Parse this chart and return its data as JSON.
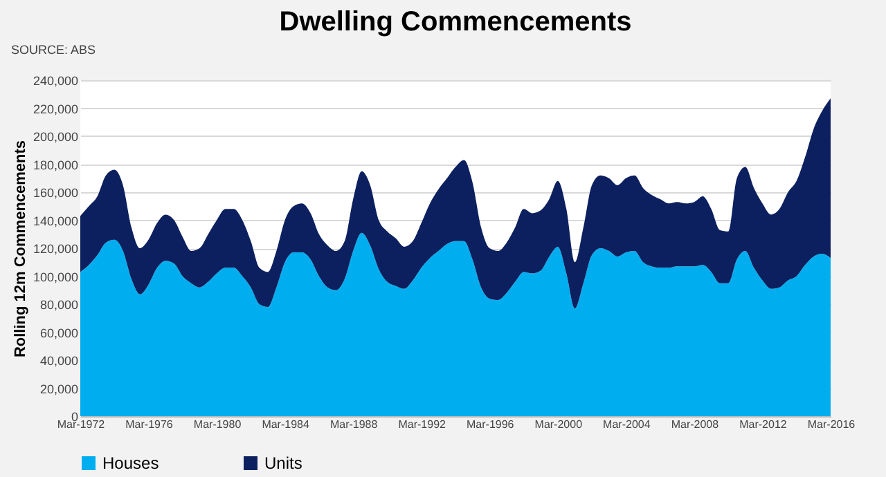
{
  "chart_data": {
    "type": "area",
    "title": "Dwelling Commencements",
    "ylabel": "Rolling 12m Commencements",
    "annotations": [
      "SOURCE: ABS"
    ],
    "stacked": true,
    "legend": "bottom",
    "grid": "y",
    "x": [
      "1972-03",
      "1972-09",
      "1973-03",
      "1973-09",
      "1974-03",
      "1974-09",
      "1975-03",
      "1975-09",
      "1976-03",
      "1976-09",
      "1977-03",
      "1977-09",
      "1978-03",
      "1978-09",
      "1979-03",
      "1979-09",
      "1980-03",
      "1980-09",
      "1981-03",
      "1981-09",
      "1982-03",
      "1982-09",
      "1983-03",
      "1983-09",
      "1984-03",
      "1984-09",
      "1985-03",
      "1985-09",
      "1986-03",
      "1986-09",
      "1987-03",
      "1987-09",
      "1988-03",
      "1988-09",
      "1989-03",
      "1989-09",
      "1990-03",
      "1990-09",
      "1991-03",
      "1991-09",
      "1992-03",
      "1992-09",
      "1993-03",
      "1993-09",
      "1994-03",
      "1994-09",
      "1995-03",
      "1995-09",
      "1996-03",
      "1996-09",
      "1997-03",
      "1997-09",
      "1998-03",
      "1998-09",
      "1999-03",
      "1999-09",
      "2000-03",
      "2000-09",
      "2001-03",
      "2001-09",
      "2002-03",
      "2002-09",
      "2003-03",
      "2003-09",
      "2004-03",
      "2004-09",
      "2005-03",
      "2005-09",
      "2006-03",
      "2006-09",
      "2007-03",
      "2007-09",
      "2008-03",
      "2008-09",
      "2009-03",
      "2009-09",
      "2010-03",
      "2010-09",
      "2011-03",
      "2011-09",
      "2012-03",
      "2012-09",
      "2013-03",
      "2013-09",
      "2014-03",
      "2014-09",
      "2015-03",
      "2015-09",
      "2016-03"
    ],
    "series": [
      {
        "name": "Houses",
        "color": "#00aeef",
        "values": [
          103000,
          108000,
          115000,
          124000,
          126000,
          118000,
          98000,
          87000,
          94000,
          106000,
          111000,
          109000,
          100000,
          95000,
          92000,
          96000,
          102000,
          106000,
          106000,
          100000,
          92000,
          80000,
          78000,
          92000,
          110000,
          117000,
          117000,
          112000,
          100000,
          92000,
          90000,
          98000,
          118000,
          131000,
          122000,
          105000,
          96000,
          93000,
          91000,
          97000,
          106000,
          113000,
          118000,
          123000,
          125000,
          125000,
          112000,
          92000,
          84000,
          83000,
          88000,
          96000,
          103000,
          102000,
          104000,
          114000,
          121000,
          102000,
          77000,
          95000,
          115000,
          120000,
          118000,
          114000,
          117000,
          118000,
          110000,
          107000,
          106000,
          106000,
          107000,
          107000,
          107000,
          108000,
          103000,
          95000,
          95000,
          112000,
          118000,
          106000,
          97000,
          91000,
          92000,
          97000,
          100000,
          108000,
          114000,
          116000,
          113000
        ]
      },
      {
        "name": "Units",
        "color": "#0c2060",
        "values": [
          40000,
          42000,
          42000,
          48000,
          50000,
          47000,
          37000,
          33000,
          32000,
          32000,
          33000,
          31000,
          28000,
          23000,
          28000,
          34000,
          38000,
          42000,
          42000,
          40000,
          33000,
          26000,
          25000,
          26000,
          30000,
          33000,
          35000,
          33000,
          30000,
          30000,
          28000,
          27000,
          37000,
          44000,
          43000,
          35000,
          36000,
          34000,
          30000,
          28000,
          32000,
          39000,
          44000,
          47000,
          53000,
          58000,
          55000,
          43000,
          36000,
          35000,
          36000,
          39000,
          45000,
          43000,
          43000,
          41000,
          47000,
          46000,
          33000,
          40000,
          50000,
          52000,
          52000,
          51000,
          53000,
          54000,
          53000,
          51000,
          49000,
          46000,
          46000,
          45000,
          46000,
          49000,
          45000,
          38000,
          37000,
          58000,
          60000,
          57000,
          55000,
          53000,
          56000,
          63000,
          68000,
          77000,
          91000,
          102000,
          114000
        ]
      }
    ],
    "xlim": [
      "1972-03",
      "2016-03"
    ],
    "xticks": [
      {
        "value": "1972-03",
        "label": "Mar-1972"
      },
      {
        "value": "1976-03",
        "label": "Mar-1976"
      },
      {
        "value": "1980-03",
        "label": "Mar-1980"
      },
      {
        "value": "1984-03",
        "label": "Mar-1984"
      },
      {
        "value": "1988-03",
        "label": "Mar-1988"
      },
      {
        "value": "1992-03",
        "label": "Mar-1992"
      },
      {
        "value": "1996-03",
        "label": "Mar-1996"
      },
      {
        "value": "2000-03",
        "label": "Mar-2000"
      },
      {
        "value": "2004-03",
        "label": "Mar-2004"
      },
      {
        "value": "2008-03",
        "label": "Mar-2008"
      },
      {
        "value": "2012-03",
        "label": "Mar-2012"
      },
      {
        "value": "2016-03",
        "label": "Mar-2016"
      }
    ],
    "ylim": [
      0,
      240000
    ],
    "yticks": [
      {
        "value": 0,
        "label": "0"
      },
      {
        "value": 20000,
        "label": "20,000"
      },
      {
        "value": 40000,
        "label": "40,000"
      },
      {
        "value": 60000,
        "label": "60,000"
      },
      {
        "value": 80000,
        "label": "80,000"
      },
      {
        "value": 100000,
        "label": "100,000"
      },
      {
        "value": 120000,
        "label": "120,000"
      },
      {
        "value": 140000,
        "label": "140,000"
      },
      {
        "value": 160000,
        "label": "160,000"
      },
      {
        "value": 180000,
        "label": "180,000"
      },
      {
        "value": 200000,
        "label": "200,000"
      },
      {
        "value": 220000,
        "label": "220,000"
      },
      {
        "value": 240000,
        "label": "240,000"
      }
    ]
  }
}
